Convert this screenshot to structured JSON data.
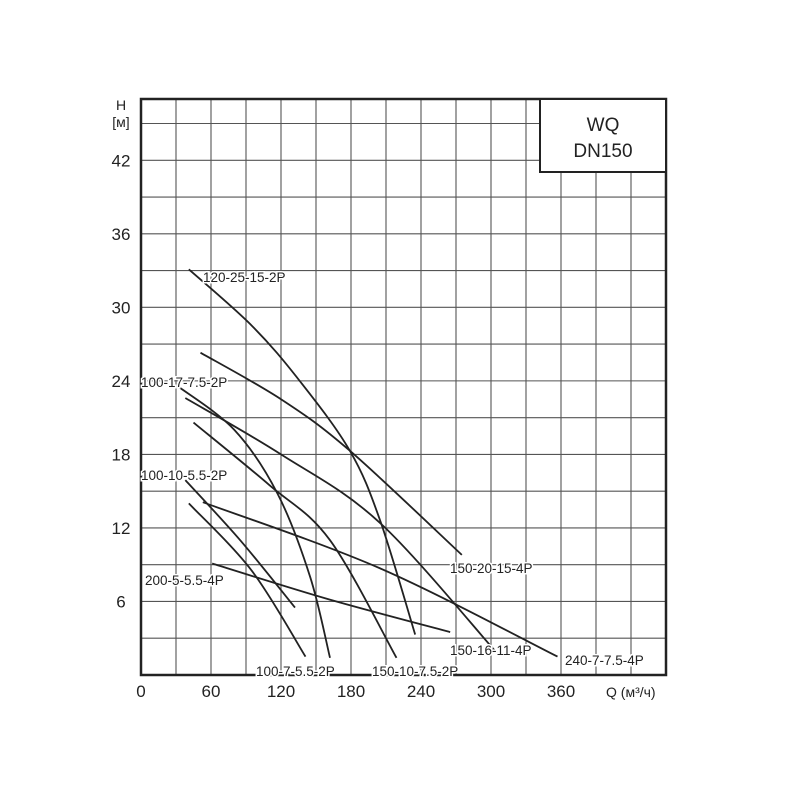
{
  "chart_data": {
    "type": "line",
    "title_box": {
      "line1": "WQ",
      "line2": "DN150"
    },
    "xlabel": "Q (м³/ч)",
    "ylabel_line1": "H",
    "ylabel_line2": "[м]",
    "xlim": [
      0,
      450
    ],
    "ylim": [
      0,
      47
    ],
    "xticks": [
      0,
      60,
      120,
      180,
      240,
      300,
      360
    ],
    "yticks": [
      6,
      12,
      18,
      24,
      30,
      36,
      42
    ],
    "x_grid_step": 30,
    "y_grid_step": 3,
    "grid": true,
    "series": [
      {
        "name": "120-25-15-2P",
        "points": [
          [
            41,
            33.1
          ],
          [
            95,
            28.5
          ],
          [
            136,
            24
          ],
          [
            179,
            18.3
          ],
          [
            205,
            12.6
          ],
          [
            235,
            3.3
          ]
        ]
      },
      {
        "name": "150-20-15-4P",
        "points": [
          [
            51,
            26.3
          ],
          [
            120,
            22.5
          ],
          [
            179,
            18.3
          ],
          [
            275,
            9.8
          ]
        ]
      },
      {
        "name": "100-17-7.5-2P",
        "points": [
          [
            31,
            23.6
          ],
          [
            80,
            20
          ],
          [
            117,
            14.8
          ],
          [
            145,
            8
          ],
          [
            162,
            1.4
          ]
        ]
      },
      {
        "name": "150-16-11-4P",
        "points": [
          [
            38,
            22.6
          ],
          [
            120,
            18
          ],
          [
            205,
            12.4
          ],
          [
            305,
            1.8
          ]
        ]
      },
      {
        "name": "150-10-7.5-2P",
        "points": [
          [
            45,
            20.6
          ],
          [
            110,
            15.5
          ],
          [
            162,
            11
          ],
          [
            219,
            1.4
          ]
        ]
      },
      {
        "name": "100-10-5.5-2P",
        "points": [
          [
            38,
            15.9
          ],
          [
            85,
            11
          ],
          [
            132,
            5.5
          ]
        ]
      },
      {
        "name": "240-7-7.5-4P",
        "points": [
          [
            53,
            14.1
          ],
          [
            205,
            8.7
          ],
          [
            357,
            1.5
          ]
        ]
      },
      {
        "name": "100-7-5.5-2P",
        "points": [
          [
            41,
            14
          ],
          [
            95,
            8.5
          ],
          [
            141,
            1.5
          ]
        ]
      },
      {
        "name": "200-5-5.5-4P",
        "points": [
          [
            61,
            9.1
          ],
          [
            160,
            6.2
          ],
          [
            265,
            3.5
          ]
        ]
      }
    ]
  },
  "colors": {
    "line": "#222222",
    "grid": "#555555"
  }
}
